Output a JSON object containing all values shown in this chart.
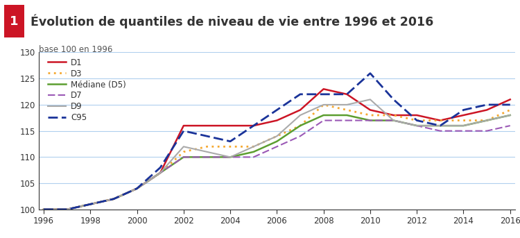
{
  "title": "Évolution de quantiles de niveau de vie entre 1996 et 2016",
  "subtitle": "base 100 en 1996",
  "title_number": "1",
  "years": [
    1996,
    1997,
    1998,
    1999,
    2000,
    2001,
    2002,
    2003,
    2004,
    2005,
    2006,
    2007,
    2008,
    2009,
    2010,
    2011,
    2012,
    2013,
    2014,
    2015,
    2016
  ],
  "D1": [
    100,
    100,
    101,
    102,
    104,
    107,
    116,
    116,
    116,
    116,
    117,
    119,
    123,
    122,
    119,
    118,
    118,
    117,
    118,
    119,
    121
  ],
  "D3": [
    100,
    100,
    101,
    102,
    104,
    107,
    111,
    112,
    112,
    112,
    114,
    116,
    120,
    119,
    118,
    118,
    117,
    117,
    117,
    117,
    119
  ],
  "D5": [
    100,
    100,
    101,
    102,
    104,
    107,
    110,
    110,
    110,
    111,
    113,
    116,
    118,
    118,
    117,
    117,
    116,
    116,
    116,
    117,
    118
  ],
  "D7": [
    100,
    100,
    101,
    102,
    104,
    107,
    110,
    110,
    110,
    110,
    112,
    114,
    117,
    117,
    117,
    117,
    116,
    115,
    115,
    115,
    116
  ],
  "D9": [
    100,
    100,
    101,
    102,
    104,
    107,
    112,
    111,
    110,
    112,
    114,
    118,
    120,
    120,
    121,
    117,
    116,
    116,
    116,
    117,
    118
  ],
  "C95": [
    100,
    100,
    101,
    102,
    104,
    108,
    115,
    114,
    113,
    116,
    119,
    122,
    122,
    122,
    126,
    121,
    117,
    116,
    119,
    120,
    120
  ],
  "series": [
    {
      "key": "D1",
      "color": "#cc1525",
      "ls": "-",
      "lw": 1.8,
      "label": "D1"
    },
    {
      "key": "D3",
      "color": "#f5a830",
      "ls": ":",
      "lw": 2.0,
      "label": "D3"
    },
    {
      "key": "D5",
      "color": "#5c9e30",
      "ls": "-",
      "lw": 1.8,
      "label": "Médiane (D5)"
    },
    {
      "key": "D7",
      "color": "#9b59b6",
      "ls": "--",
      "lw": 1.5,
      "label": "D7"
    },
    {
      "key": "D9",
      "color": "#aaaaaa",
      "ls": "-",
      "lw": 1.5,
      "label": "D9"
    },
    {
      "key": "C95",
      "color": "#1a3399",
      "ls": "--",
      "lw": 2.0,
      "label": "C95"
    }
  ],
  "ylim": [
    100,
    130
  ],
  "yticks": [
    100,
    105,
    110,
    115,
    120,
    125,
    130
  ],
  "xticks": [
    1996,
    1998,
    2000,
    2002,
    2004,
    2006,
    2008,
    2010,
    2012,
    2014,
    2016
  ],
  "background_color": "#ffffff",
  "title_bg_color": "#faece0",
  "grid_color": "#b0cfee",
  "title_color": "#333333",
  "number_bg_color": "#cc1525",
  "subtitle_color": "#555555",
  "tick_color": "#333333"
}
